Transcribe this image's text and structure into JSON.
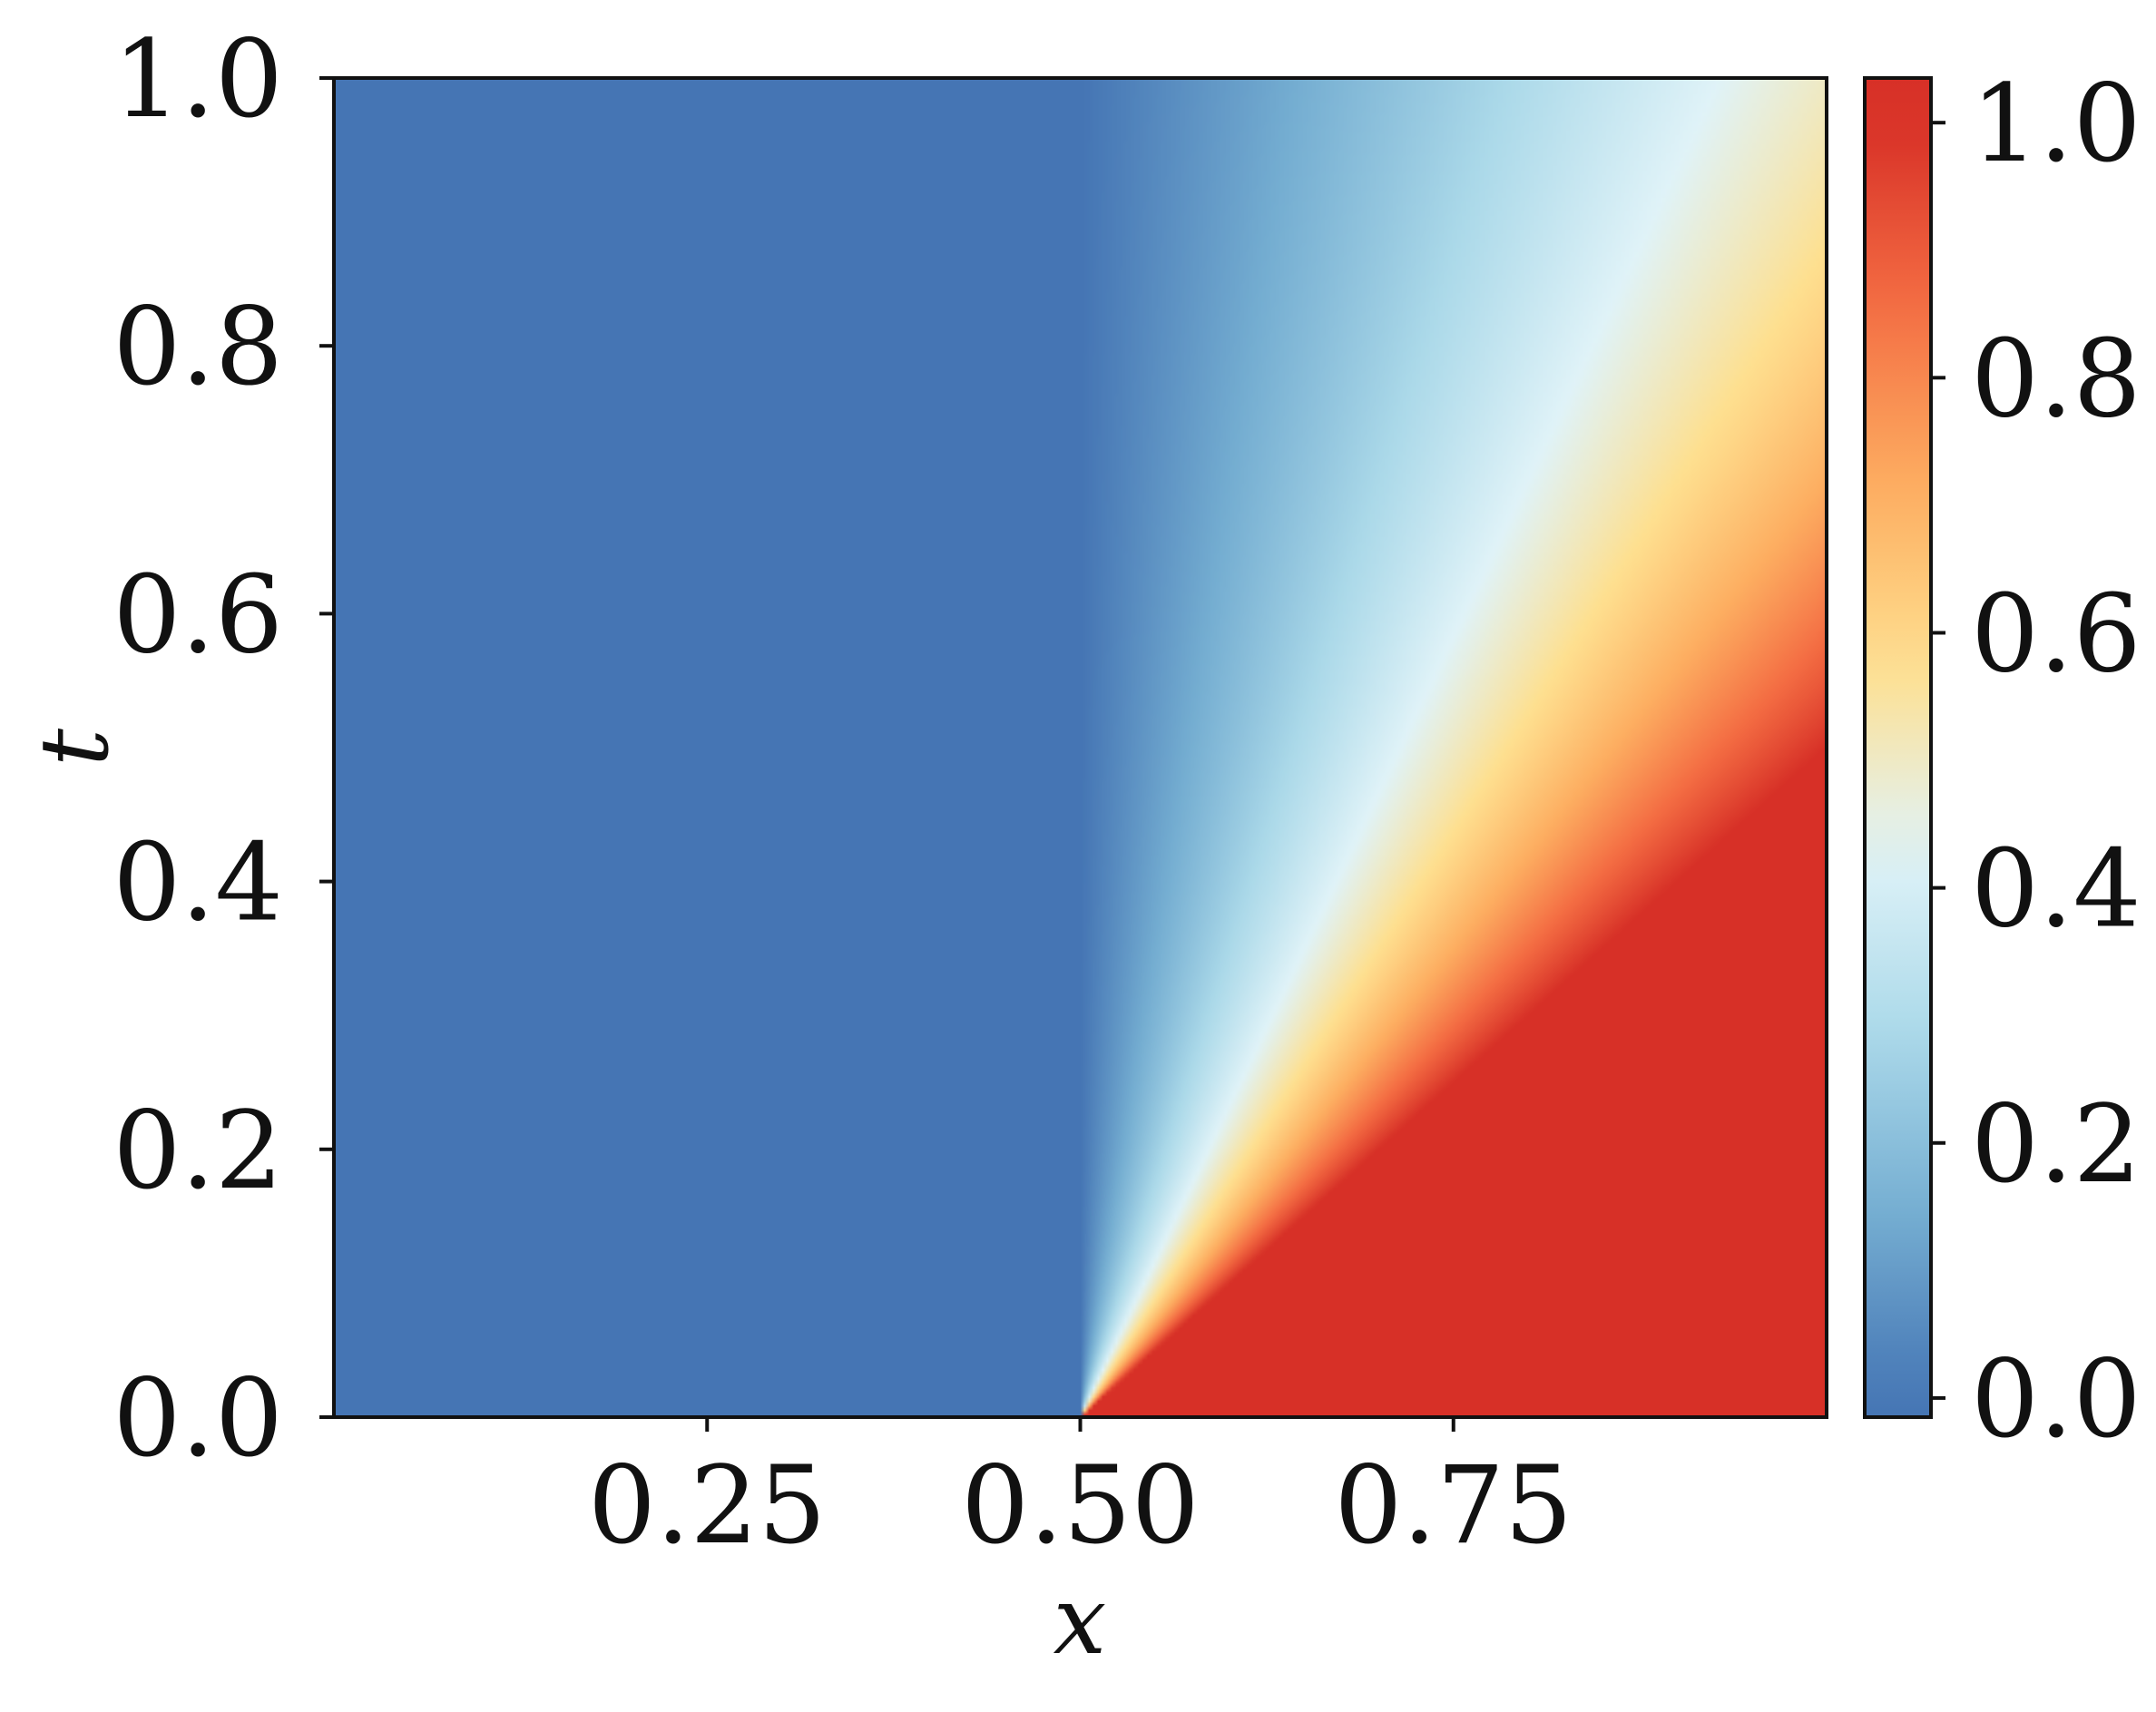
{
  "chart_data": {
    "type": "heatmap",
    "title": "",
    "xlabel": "x",
    "ylabel": "t",
    "xlim": [
      0.0,
      1.0
    ],
    "ylim": [
      0.0,
      1.0
    ],
    "x_ticks": [
      0.25,
      0.5,
      0.75
    ],
    "x_tick_labels": [
      "0.25",
      "0.50",
      "0.75"
    ],
    "y_ticks": [
      0.0,
      0.2,
      0.4,
      0.6,
      0.8,
      1.0
    ],
    "y_tick_labels": [
      "0.0",
      "0.2",
      "0.4",
      "0.6",
      "0.8",
      "1.0"
    ],
    "colorbar": {
      "range": [
        -0.015,
        1.035
      ],
      "ticks": [
        0.0,
        0.2,
        0.4,
        0.6,
        0.8,
        1.0
      ],
      "tick_labels": [
        "0.0",
        "0.2",
        "0.4",
        "0.6",
        "0.8",
        "1.0"
      ],
      "colormap": "RdYlBu_r",
      "colors": [
        "#4575b4",
        "#74add1",
        "#abd9e9",
        "#e0f3f8",
        "#fee090",
        "#fdae61",
        "#f46d43",
        "#d73027"
      ]
    },
    "field": {
      "description_values": "u(x,t): 0 for x < 0.5 at t = 0, 1 for x > 0.5; rarefaction fan u = (x - 0.5)/t between x = 0.5 and x = 0.5 + t",
      "left_state": 0.0,
      "right_state": 1.0,
      "discontinuity_x": 0.5
    },
    "grid": false,
    "legend": "none"
  }
}
